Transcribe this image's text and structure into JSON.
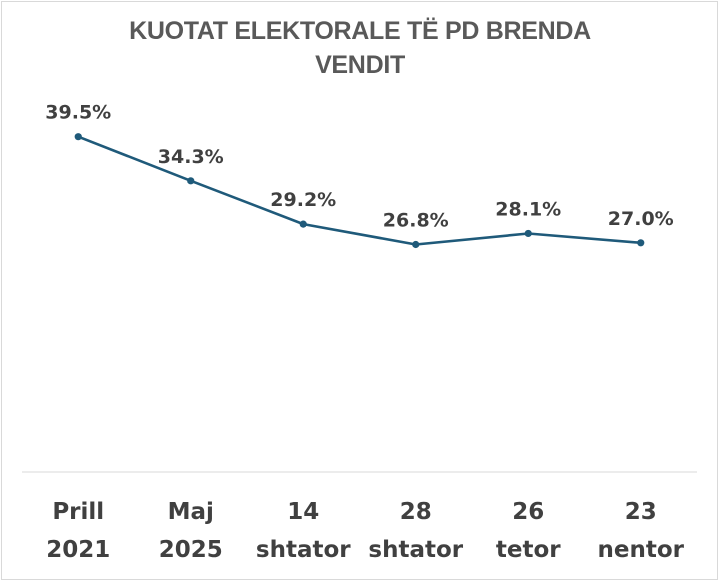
{
  "chart_data": {
    "type": "line",
    "title": "KUOTAT ELEKTORALE TË PD BRENDA VENDIT",
    "title_lines": [
      "KUOTAT ELEKTORALE TË PD BRENDA",
      "VENDIT"
    ],
    "categories": [
      [
        "Prill",
        "2021"
      ],
      [
        "Maj",
        "2025"
      ],
      [
        "14",
        "shtator"
      ],
      [
        "28",
        "shtator"
      ],
      [
        "26",
        "tetor"
      ],
      [
        "23",
        "nentor"
      ]
    ],
    "values": [
      39.5,
      34.3,
      29.2,
      26.8,
      28.1,
      27.0
    ],
    "data_labels": [
      "39.5%",
      "34.3%",
      "29.2%",
      "26.8%",
      "28.1%",
      "27.0%"
    ],
    "ylim": [
      0,
      45
    ],
    "grid": false,
    "legend": "none",
    "colors": {
      "line": "#1f5a7a",
      "text": "#404040",
      "title": "#595959",
      "axis": "#d9d9d9"
    }
  }
}
